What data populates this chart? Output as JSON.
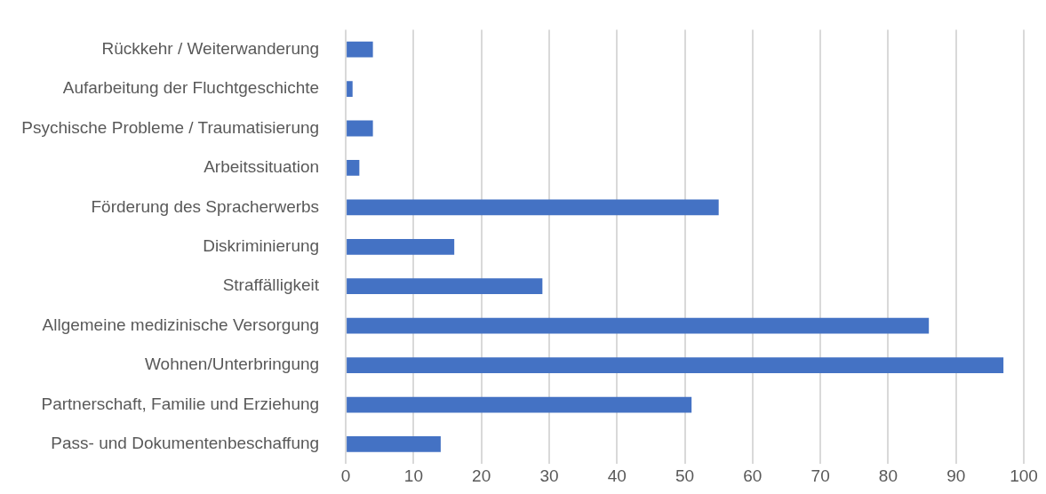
{
  "chart_data": {
    "type": "bar",
    "orientation": "horizontal",
    "categories": [
      "Rückkehr / Weiterwanderung",
      "Aufarbeitung der Fluchtgeschichte",
      "Psychische Probleme / Traumatisierung",
      "Arbeitssituation",
      "Förderung des Spracherwerbs",
      "Diskriminierung",
      "Straffälligkeit",
      "Allgemeine medizinische Versorgung",
      "Wohnen/Unterbringung",
      "Partnerschaft, Familie und Erziehung",
      "Pass- und Dokumentenbeschaffung"
    ],
    "values": [
      4,
      1,
      4,
      2,
      55,
      16,
      29,
      86,
      97,
      51,
      14
    ],
    "color": "#4472c4",
    "xlim": [
      0,
      100
    ],
    "xticks": [
      0,
      10,
      20,
      30,
      40,
      50,
      60,
      70,
      80,
      90,
      100
    ],
    "grid": "x"
  }
}
